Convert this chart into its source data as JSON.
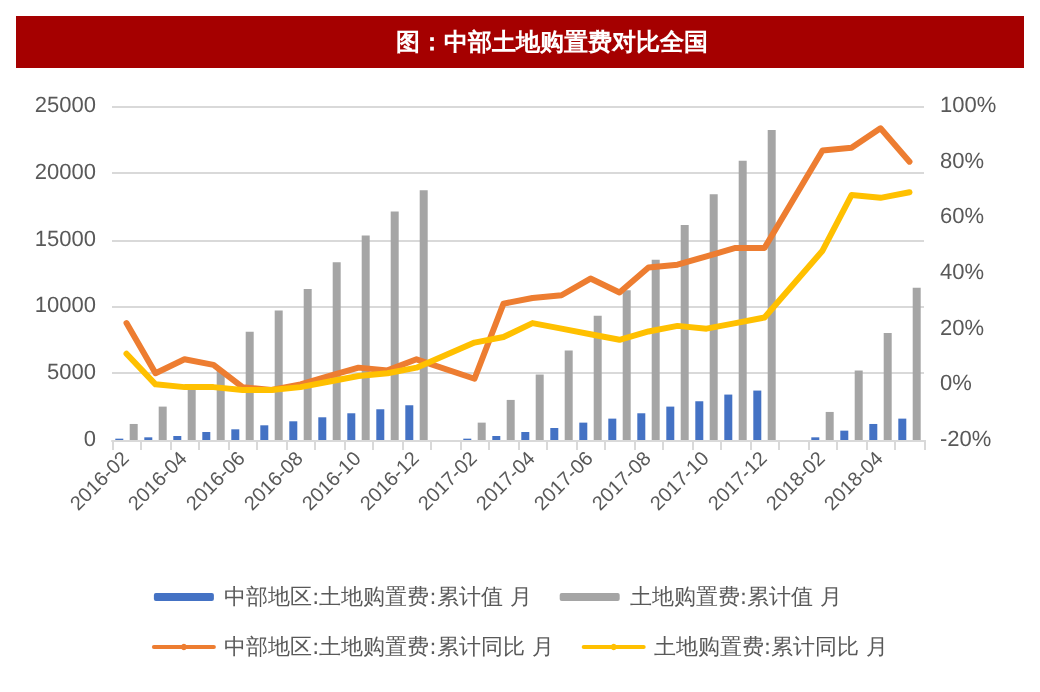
{
  "chart_data": {
    "type": "bar",
    "title": "图：中部土地购置费对比全国",
    "categories": [
      "2016-02",
      null,
      "2016-04",
      null,
      "2016-06",
      null,
      "2016-08",
      null,
      "2016-10",
      null,
      "2016-12",
      null,
      "2017-02",
      null,
      "2017-04",
      null,
      "2017-06",
      null,
      "2017-08",
      null,
      "2017-10",
      null,
      "2017-12",
      null,
      "2018-02",
      null,
      "2018-04",
      null
    ],
    "series": [
      {
        "name": "中部地区:土地购置费:累计值 月",
        "color": "#4472c4",
        "values": [
          100,
          200,
          300,
          600,
          800,
          1100,
          1400,
          1700,
          2000,
          2300,
          2600,
          null,
          100,
          300,
          600,
          900,
          1300,
          1600,
          2000,
          2500,
          2900,
          3400,
          3700,
          null,
          200,
          700,
          1200,
          1600
        ]
      },
      {
        "name": "土地购置费:累计值 月",
        "color": "#a5a5a5",
        "values": [
          1200,
          2500,
          4000,
          5200,
          8100,
          9700,
          11300,
          13300,
          15300,
          17100,
          18700,
          null,
          1300,
          3000,
          4900,
          6700,
          9300,
          11200,
          13500,
          16100,
          18400,
          20900,
          23200,
          null,
          2100,
          5200,
          8000,
          11400
        ]
      },
      {
        "name": "中部地区:土地购置费:累计同比 月",
        "type": "line",
        "axis": "y2",
        "color": "#ed7d31",
        "values": [
          22,
          4,
          9,
          7,
          -1,
          -2,
          0,
          3,
          6,
          5,
          9,
          null,
          2,
          29,
          31,
          32,
          38,
          33,
          42,
          43,
          46,
          49,
          49,
          null,
          84,
          85,
          92,
          80
        ]
      },
      {
        "name": "土地购置费:累计同比 月",
        "type": "line",
        "axis": "y2",
        "color": "#ffc000",
        "values": [
          11,
          0,
          -1,
          -1,
          -2,
          -2,
          -1,
          1,
          3,
          4,
          6,
          null,
          15,
          17,
          22,
          20,
          18,
          16,
          19,
          21,
          20,
          22,
          24,
          null,
          48,
          68,
          67,
          69
        ]
      }
    ],
    "ylim": [
      0,
      25000
    ],
    "yticks": [
      0,
      5000,
      10000,
      15000,
      20000,
      25000
    ],
    "y2lim": [
      -20,
      100
    ],
    "y2ticks": [
      {
        "value": -20,
        "label": "-20%"
      },
      {
        "value": 0,
        "label": "0%"
      },
      {
        "value": 20,
        "label": "20%"
      },
      {
        "value": 40,
        "label": "40%"
      },
      {
        "value": 60,
        "label": "60%"
      },
      {
        "value": 80,
        "label": "80%"
      },
      {
        "value": 100,
        "label": "100%"
      }
    ],
    "grid": "y",
    "legend": "bottom",
    "marker": "none",
    "line_style": "solid"
  }
}
